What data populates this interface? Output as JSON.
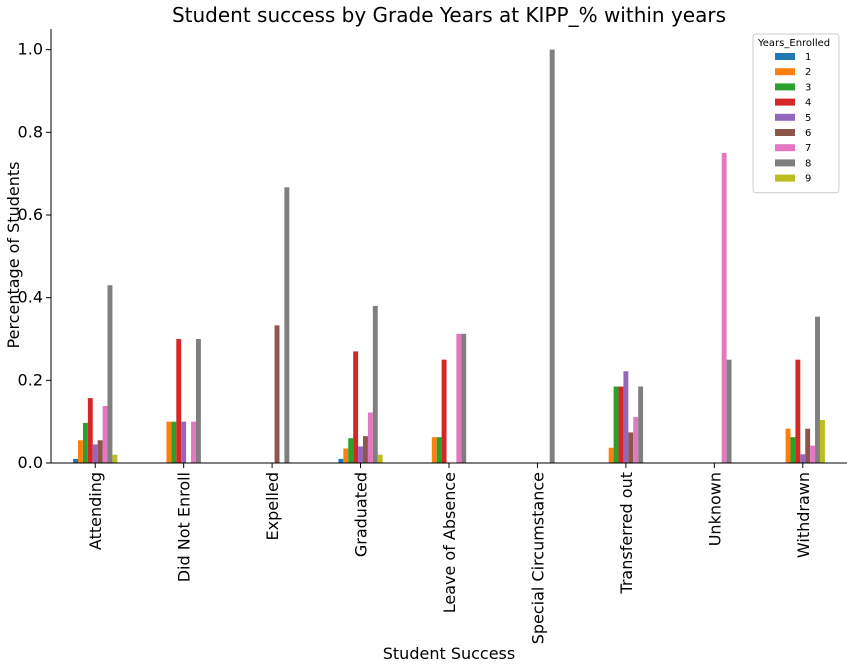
{
  "chart_data": {
    "type": "bar",
    "title": "Student success by Grade Years at KIPP_% within years",
    "xlabel": "Student Success",
    "ylabel": "Percentage of Students",
    "ylim": [
      0,
      1.05
    ],
    "yticks": [
      "0.0",
      "0.2",
      "0.4",
      "0.6",
      "0.8",
      "1.0"
    ],
    "grid": false,
    "legend_title": "Years_Enrolled",
    "legend_position": "top-right",
    "categories": [
      "Attending",
      "Did Not Enroll",
      "Expelled",
      "Graduated",
      "Leave of Absence",
      "Special Circumstance",
      "Transferred out",
      "Unknown",
      "Withdrawn"
    ],
    "series": [
      {
        "name": "1",
        "color": "#1f77b4",
        "values": [
          0.01,
          0,
          0,
          0.01,
          0,
          0,
          0,
          0,
          0
        ]
      },
      {
        "name": "2",
        "color": "#ff7f0e",
        "values": [
          0.055,
          0.1,
          0,
          0.035,
          0.0625,
          0,
          0.037,
          0,
          0.083
        ]
      },
      {
        "name": "3",
        "color": "#2ca02c",
        "values": [
          0.097,
          0.1,
          0,
          0.06,
          0.0625,
          0,
          0.185,
          0,
          0.0625
        ]
      },
      {
        "name": "4",
        "color": "#d62728",
        "values": [
          0.157,
          0.3,
          0,
          0.27,
          0.25,
          0,
          0.185,
          0,
          0.25
        ]
      },
      {
        "name": "5",
        "color": "#9467bd",
        "values": [
          0.045,
          0.1,
          0,
          0.04,
          0,
          0,
          0.222,
          0,
          0.021
        ]
      },
      {
        "name": "6",
        "color": "#8c564b",
        "values": [
          0.055,
          0,
          0.333,
          0.065,
          0,
          0,
          0.074,
          0,
          0.083
        ]
      },
      {
        "name": "7",
        "color": "#e377c2",
        "values": [
          0.138,
          0.1,
          0,
          0.122,
          0.3125,
          0,
          0.111,
          0.75,
          0.042
        ]
      },
      {
        "name": "8",
        "color": "#7f7f7f",
        "values": [
          0.43,
          0.3,
          0.667,
          0.38,
          0.3125,
          1.0,
          0.185,
          0.25,
          0.354
        ]
      },
      {
        "name": "9",
        "color": "#bcbd22",
        "values": [
          0.02,
          0,
          0,
          0.02,
          0,
          0,
          0,
          0,
          0.104
        ]
      }
    ]
  }
}
